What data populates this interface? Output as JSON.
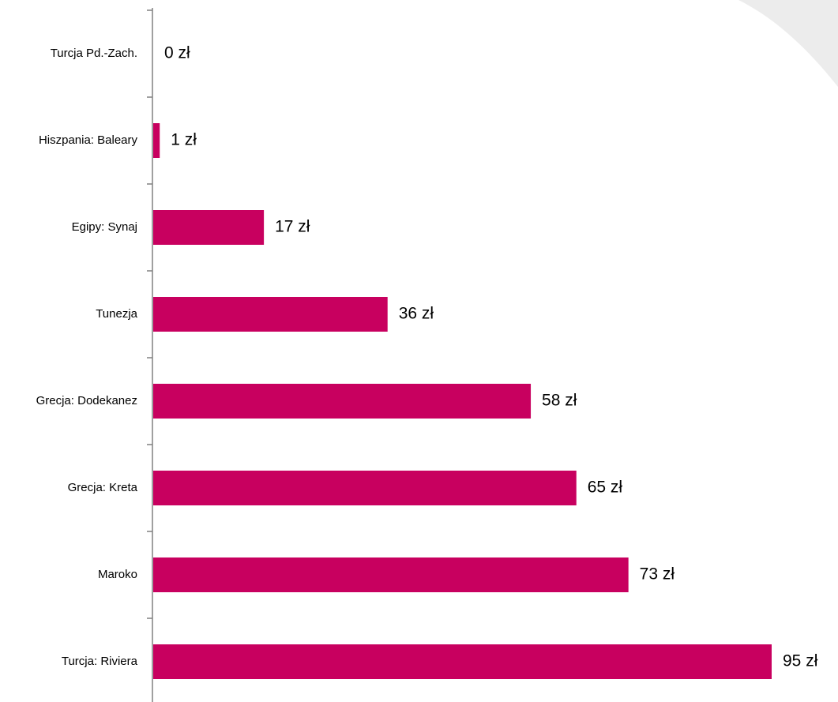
{
  "chart_data": {
    "type": "bar",
    "orientation": "horizontal",
    "categories": [
      "Turcja Pd.-Zach.",
      "Hiszpania: Baleary",
      "Egipy: Synaj",
      "Tunezja",
      "Grecja: Dodekanez",
      "Grecja: Kreta",
      "Maroko",
      "Turcja: Riviera"
    ],
    "values": [
      0,
      1,
      17,
      36,
      58,
      65,
      73,
      95
    ],
    "data_labels": [
      "0 zł",
      "1 zł",
      "17 zł",
      "36 zł",
      "58 zł",
      "65 zł",
      "73 zł",
      "95 zł"
    ],
    "value_unit": "zł",
    "xlim": [
      0,
      95
    ],
    "grid": false,
    "legend": "none",
    "colors": {
      "bar": "#C8005F",
      "axis": "#808080",
      "decoration": "#ECECEC"
    }
  }
}
